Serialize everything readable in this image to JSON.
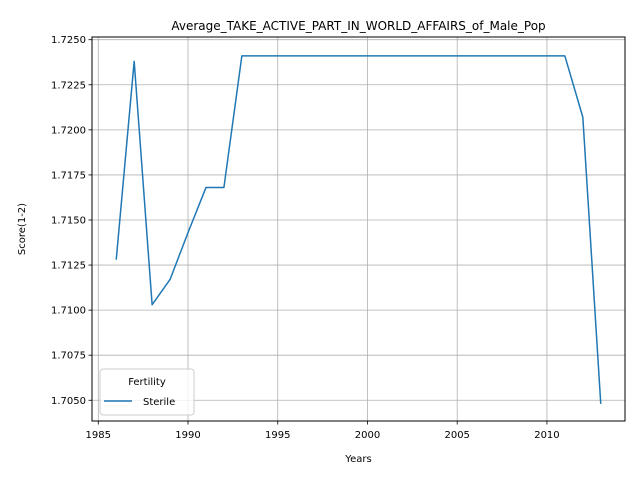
{
  "chart_data": {
    "type": "line",
    "title": "Average_TAKE_ACTIVE_PART_IN_WORLD_AFFAIRS_of_Male_Pop",
    "xlabel": "Years",
    "ylabel": "Score(1-2)",
    "xlim": [
      1984.65,
      2014.35
    ],
    "ylim": [
      1.70385,
      1.72515
    ],
    "xticks": [
      1985,
      1990,
      1995,
      2000,
      2005,
      2010
    ],
    "xtick_labels": [
      "1985",
      "1990",
      "1995",
      "2000",
      "2005",
      "2010"
    ],
    "yticks": [
      1.705,
      1.7075,
      1.71,
      1.7125,
      1.715,
      1.7175,
      1.72,
      1.7225,
      1.725
    ],
    "ytick_labels": [
      "1.7050",
      "1.7075",
      "1.7100",
      "1.7125",
      "1.7150",
      "1.7175",
      "1.7200",
      "1.7225",
      "1.7250"
    ],
    "grid": true,
    "legend": {
      "title": "Fertility",
      "position": "lower-left"
    },
    "series": [
      {
        "name": "Sterile",
        "color": "#1f77b4",
        "x": [
          1986,
          1987,
          1988,
          1989,
          1990,
          1991,
          1992,
          1993,
          1994,
          1995,
          1996,
          1997,
          1998,
          1999,
          2000,
          2001,
          2002,
          2003,
          2004,
          2005,
          2006,
          2007,
          2008,
          2009,
          2010,
          2011,
          2012,
          2013
        ],
        "y": [
          1.7128,
          1.7238,
          1.7103,
          1.7117,
          1.7143,
          1.7168,
          1.7168,
          1.7241,
          1.7241,
          1.7241,
          1.7241,
          1.7241,
          1.7241,
          1.7241,
          1.7241,
          1.7241,
          1.7241,
          1.7241,
          1.7241,
          1.7241,
          1.7241,
          1.7241,
          1.7241,
          1.7241,
          1.7241,
          1.7241,
          1.7207,
          1.7048
        ]
      }
    ]
  }
}
